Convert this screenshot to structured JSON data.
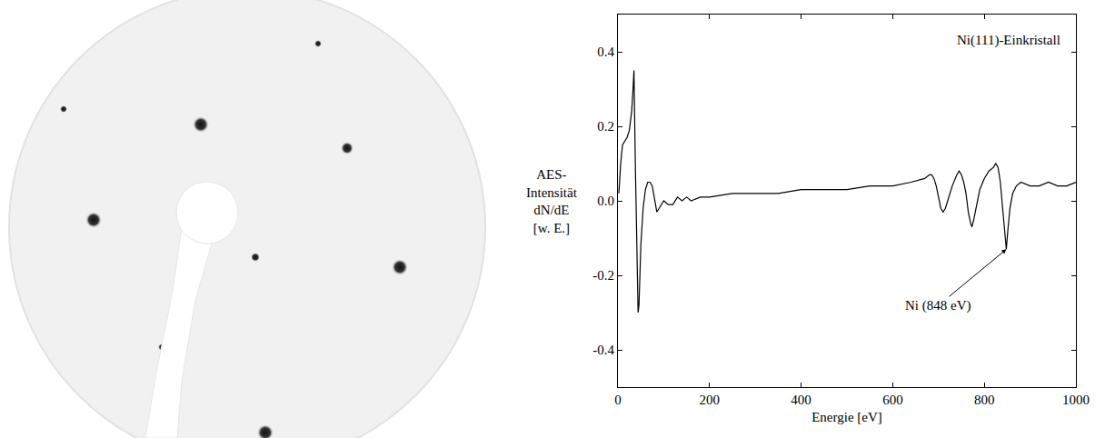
{
  "chart_data": {
    "type": "line",
    "xlabel": "Energie [eV]",
    "ylabel": [
      "AES-",
      "Intensität",
      "dN/dE",
      "[w. E.]"
    ],
    "xlim": [
      0,
      1000
    ],
    "xticks": [
      0,
      200,
      400,
      600,
      800,
      1000
    ],
    "ylim": [
      -0.5,
      0.5
    ],
    "yticks": [
      -0.4,
      -0.2,
      {
        "value": 0,
        "label": "0.0"
      },
      0.2,
      0.4
    ],
    "grid": false,
    "annotations": [
      {
        "text": "Ni(111)-Einkristall"
      },
      {
        "text": "Ni (848 eV)",
        "x": 848,
        "y": -0.13
      }
    ],
    "series": [
      {
        "color": "#000000",
        "x": [
          2,
          6,
          10,
          15,
          20,
          25,
          30,
          33,
          35,
          38,
          41,
          44,
          46,
          50,
          55,
          60,
          65,
          70,
          75,
          80,
          85,
          90,
          95,
          100,
          110,
          120,
          130,
          140,
          150,
          160,
          180,
          200,
          250,
          300,
          350,
          400,
          450,
          500,
          550,
          600,
          640,
          670,
          680,
          685,
          690,
          695,
          700,
          705,
          710,
          715,
          720,
          730,
          740,
          745,
          750,
          755,
          760,
          765,
          770,
          773,
          777,
          782,
          790,
          800,
          810,
          820,
          825,
          830,
          835,
          840,
          845,
          848,
          852,
          856,
          862,
          870,
          880,
          900,
          920,
          940,
          960,
          980,
          1000
        ],
        "values": [
          0.02,
          0.1,
          0.15,
          0.16,
          0.17,
          0.19,
          0.24,
          0.3,
          0.35,
          0.1,
          -0.15,
          -0.3,
          -0.28,
          -0.12,
          -0.02,
          0.03,
          0.05,
          0.05,
          0.04,
          0.0,
          -0.03,
          -0.02,
          -0.01,
          0.0,
          -0.01,
          -0.01,
          0.01,
          0.0,
          0.01,
          0.0,
          0.01,
          0.01,
          0.02,
          0.02,
          0.02,
          0.03,
          0.03,
          0.03,
          0.04,
          0.04,
          0.05,
          0.06,
          0.07,
          0.07,
          0.06,
          0.04,
          0.01,
          -0.02,
          -0.03,
          -0.02,
          0.0,
          0.04,
          0.07,
          0.08,
          0.07,
          0.05,
          0.02,
          -0.03,
          -0.06,
          -0.07,
          -0.05,
          -0.02,
          0.03,
          0.06,
          0.08,
          0.09,
          0.1,
          0.09,
          0.05,
          -0.02,
          -0.09,
          -0.13,
          -0.07,
          -0.02,
          0.02,
          0.04,
          0.05,
          0.04,
          0.04,
          0.05,
          0.04,
          0.04,
          0.05
        ]
      }
    ]
  }
}
